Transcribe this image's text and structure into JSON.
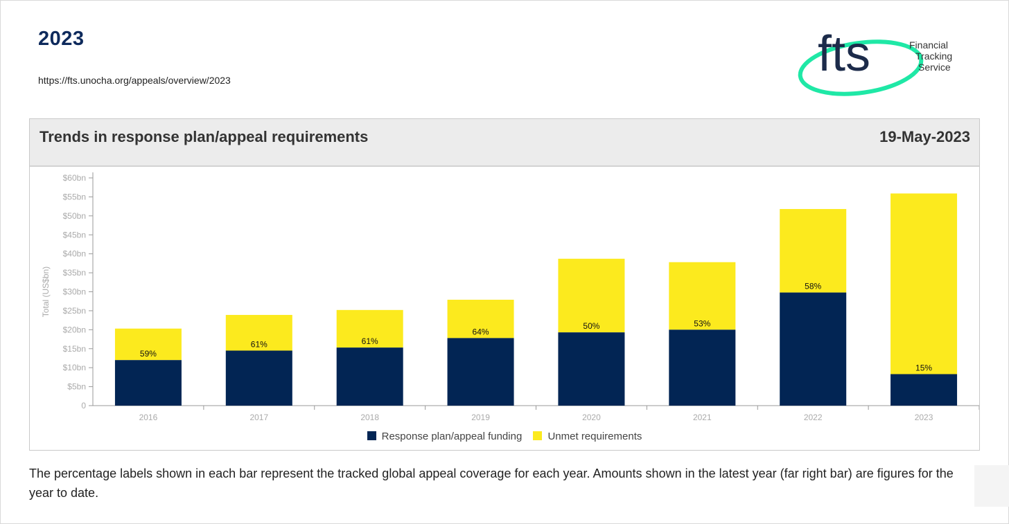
{
  "header": {
    "title": "2023",
    "url": "https://fts.unocha.org/appeals/overview/2023"
  },
  "logo": {
    "wordmark": "fts",
    "line1": "Financial",
    "line2": "Tracking",
    "line3": "Service"
  },
  "panel": {
    "title": "Trends in response plan/appeal requirements",
    "date": "19-May-2023"
  },
  "colors": {
    "funded": "#022554",
    "unmet": "#fcea1e",
    "title_navy": "#0e2a5c",
    "logo_green": "#1fe8a6"
  },
  "chart_data": {
    "type": "bar",
    "stacked": true,
    "categories": [
      "2016",
      "2017",
      "2018",
      "2019",
      "2020",
      "2021",
      "2022",
      "2023"
    ],
    "series": [
      {
        "name": "Response plan/appeal funding",
        "color": "#022554",
        "values": [
          12.0,
          14.5,
          15.3,
          17.8,
          19.3,
          20.0,
          29.8,
          8.3
        ]
      },
      {
        "name": "Unmet requirements",
        "color": "#fcea1e",
        "values": [
          8.3,
          9.4,
          9.9,
          10.1,
          19.4,
          17.8,
          22.0,
          47.6
        ]
      }
    ],
    "bar_labels": [
      "59%",
      "61%",
      "61%",
      "64%",
      "50%",
      "53%",
      "58%",
      "15%"
    ],
    "ylabel": "Total (US$bn)",
    "xlabel": "",
    "ylim": [
      0,
      60
    ],
    "yticks": [
      0,
      5,
      10,
      15,
      20,
      25,
      30,
      35,
      40,
      45,
      50,
      55,
      60
    ],
    "ytick_labels": [
      "0",
      "$5bn",
      "$10bn",
      "$15bn",
      "$20bn",
      "$25bn",
      "$30bn",
      "$35bn",
      "$40bn",
      "$45bn",
      "$50bn",
      "$55bn",
      "$60bn"
    ],
    "grid": false,
    "legend_position": "bottom"
  },
  "footnote": "The percentage labels shown in each bar represent the tracked global appeal coverage for each year. Amounts shown in the latest year (far right bar) are figures for the year to date."
}
